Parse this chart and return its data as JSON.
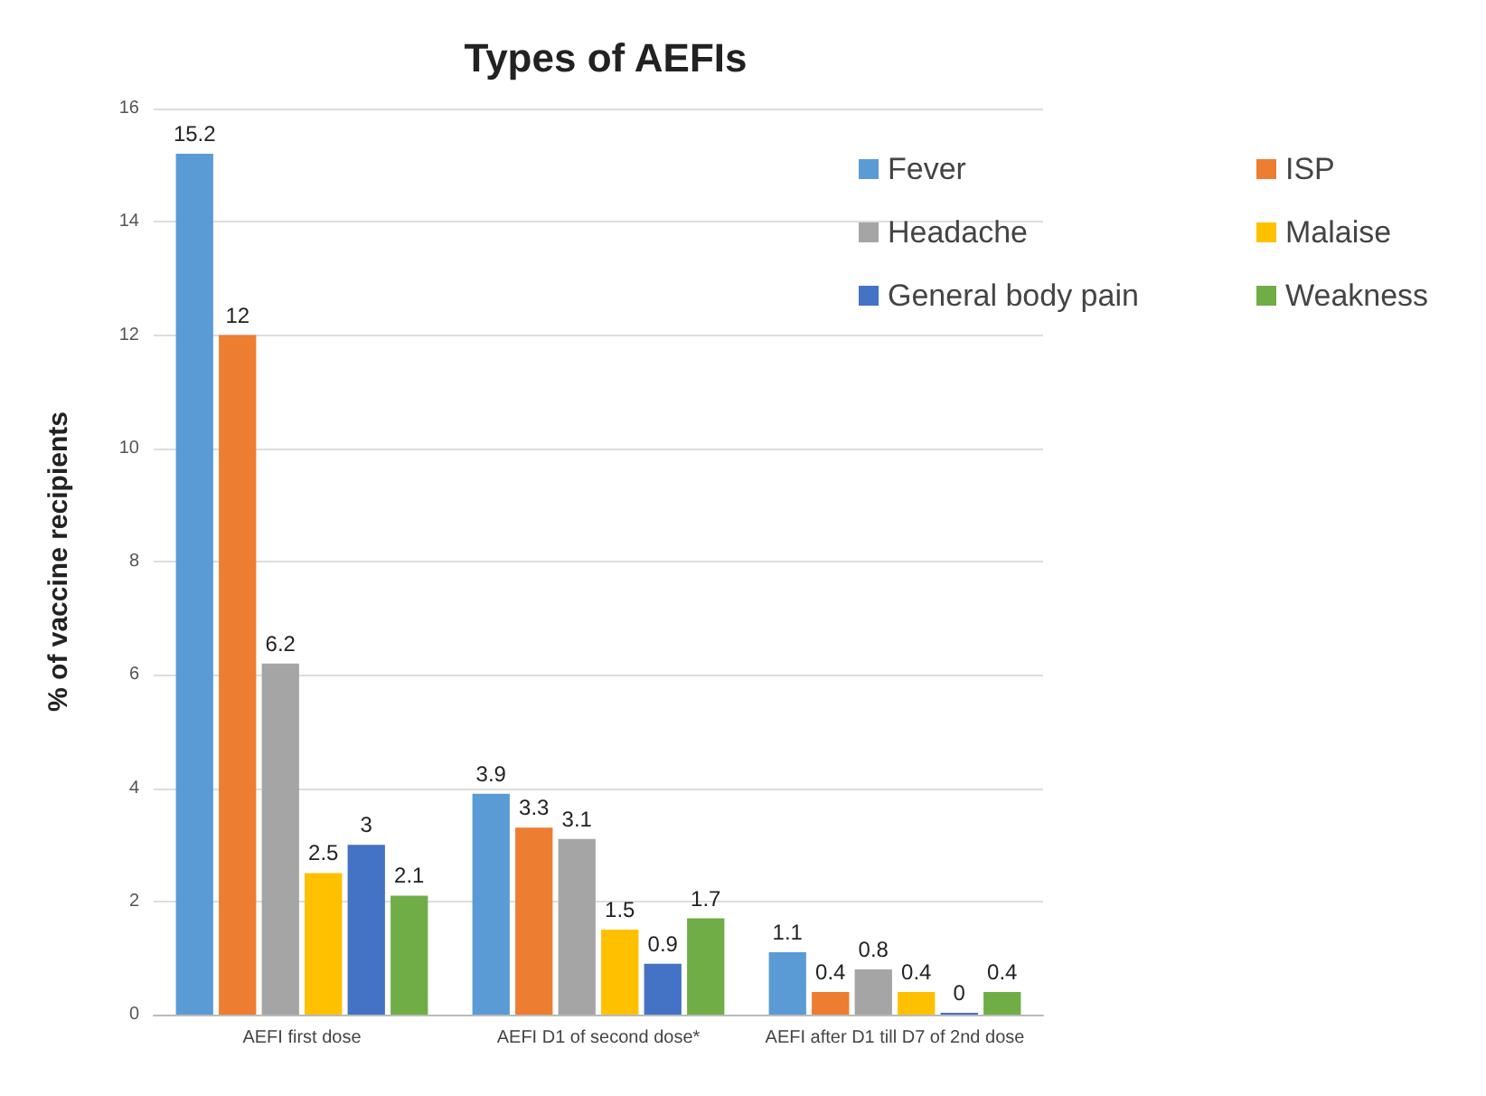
{
  "chart_data": {
    "type": "bar",
    "title": "Types of AEFIs",
    "ylabel": "% of vaccine recipients",
    "categories": [
      "AEFI first dose",
      "AEFI D1 of second dose*",
      "AEFI after D1 till D7 of 2nd dose"
    ],
    "series": [
      {
        "name": "Fever",
        "color": "#5b9bd5",
        "values": [
          15.2,
          3.9,
          1.1
        ]
      },
      {
        "name": "ISP",
        "color": "#ed7d31",
        "values": [
          12,
          3.3,
          0.4
        ]
      },
      {
        "name": "Headache",
        "color": "#a5a5a5",
        "values": [
          6.2,
          3.1,
          0.8
        ]
      },
      {
        "name": "Malaise",
        "color": "#ffc000",
        "values": [
          2.5,
          1.5,
          0.4
        ]
      },
      {
        "name": "General body pain",
        "color": "#4472c4",
        "values": [
          3,
          0.9,
          0
        ]
      },
      {
        "name": "Weakness",
        "color": "#70ad47",
        "values": [
          2.1,
          1.7,
          0.4
        ]
      }
    ],
    "ylim": [
      0,
      16
    ],
    "yticks": [
      0,
      2,
      4,
      6,
      8,
      10,
      12,
      14,
      16
    ],
    "grid": "y",
    "legend": "top right",
    "data_labels": true
  }
}
